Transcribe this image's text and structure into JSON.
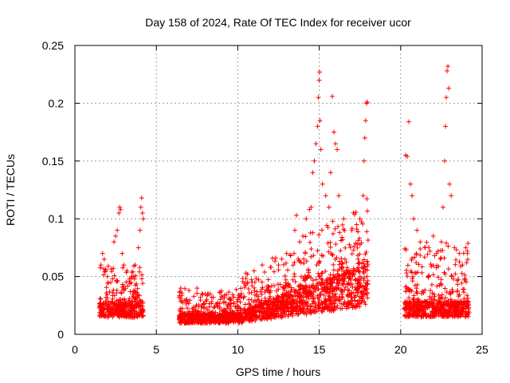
{
  "chart_data": {
    "type": "scatter",
    "title": "Day 158 of 2024, Rate Of TEC Index for receiver ucor",
    "xlabel": "GPS time / hours",
    "ylabel": "ROTI / TECUs",
    "xlim": [
      0,
      25
    ],
    "ylim": [
      0,
      0.25
    ],
    "x_ticks": [
      0,
      5,
      10,
      15,
      20,
      25
    ],
    "y_ticks": [
      0,
      0.05,
      0.1,
      0.15,
      0.2,
      0.25
    ],
    "x_tick_labels": [
      "0",
      "5",
      "10",
      "15",
      "20",
      "25"
    ],
    "y_tick_labels": [
      "0",
      "0.05",
      "0.1",
      "0.15",
      "0.2",
      "0.25"
    ],
    "grid": true,
    "marker": "+",
    "marker_color": "#ff0000",
    "description_bands": [
      {
        "x_start": 1.5,
        "x_end": 4.2,
        "y_min": 0.008,
        "y_median": 0.027,
        "y_max": 0.118
      },
      {
        "x_start": 6.4,
        "x_end": 10.3,
        "y_min": 0.005,
        "y_median": 0.018,
        "y_max": 0.04
      },
      {
        "x_start": 10.3,
        "x_end": 18.0,
        "y_min": 0.005,
        "y_median": 0.035,
        "y_max": 0.227
      },
      {
        "x_start": 20.2,
        "x_end": 24.2,
        "y_min": 0.008,
        "y_median": 0.028,
        "y_max": 0.232
      }
    ],
    "series": [
      {
        "name": "ROTI",
        "points": [
          [
            1.6,
            0.06
          ],
          [
            1.7,
            0.07
          ],
          [
            1.8,
            0.065
          ],
          [
            1.9,
            0.055
          ],
          [
            2.0,
            0.05
          ],
          [
            2.2,
            0.045
          ],
          [
            2.4,
            0.08
          ],
          [
            2.5,
            0.085
          ],
          [
            2.6,
            0.09
          ],
          [
            2.7,
            0.105
          ],
          [
            2.75,
            0.11
          ],
          [
            2.8,
            0.108
          ],
          [
            2.9,
            0.07
          ],
          [
            3.0,
            0.06
          ],
          [
            3.2,
            0.055
          ],
          [
            3.5,
            0.05
          ],
          [
            3.7,
            0.06
          ],
          [
            3.9,
            0.075
          ],
          [
            4.0,
            0.09
          ],
          [
            4.05,
            0.11
          ],
          [
            4.1,
            0.118
          ],
          [
            4.15,
            0.105
          ],
          [
            4.2,
            0.1
          ],
          [
            6.5,
            0.04
          ],
          [
            7.0,
            0.038
          ],
          [
            7.5,
            0.04
          ],
          [
            8.0,
            0.035
          ],
          [
            8.5,
            0.032
          ],
          [
            9.0,
            0.033
          ],
          [
            9.5,
            0.03
          ],
          [
            10.0,
            0.03
          ],
          [
            10.5,
            0.053
          ],
          [
            10.6,
            0.052
          ],
          [
            11.0,
            0.055
          ],
          [
            11.5,
            0.06
          ],
          [
            12.0,
            0.058
          ],
          [
            12.5,
            0.06
          ],
          [
            13.0,
            0.07
          ],
          [
            13.5,
            0.09
          ],
          [
            13.6,
            0.103
          ],
          [
            13.8,
            0.08
          ],
          [
            14.0,
            0.085
          ],
          [
            14.2,
            0.1
          ],
          [
            14.4,
            0.108
          ],
          [
            14.5,
            0.11
          ],
          [
            14.6,
            0.14
          ],
          [
            14.7,
            0.15
          ],
          [
            14.8,
            0.165
          ],
          [
            14.9,
            0.18
          ],
          [
            14.95,
            0.205
          ],
          [
            15.0,
            0.22
          ],
          [
            15.02,
            0.227
          ],
          [
            15.05,
            0.185
          ],
          [
            15.1,
            0.16
          ],
          [
            15.2,
            0.13
          ],
          [
            15.4,
            0.12
          ],
          [
            15.6,
            0.11
          ],
          [
            15.7,
            0.14
          ],
          [
            15.8,
            0.206
          ],
          [
            15.9,
            0.175
          ],
          [
            16.0,
            0.165
          ],
          [
            16.1,
            0.16
          ],
          [
            16.2,
            0.12
          ],
          [
            16.5,
            0.1
          ],
          [
            17.0,
            0.09
          ],
          [
            17.3,
            0.095
          ],
          [
            17.5,
            0.1
          ],
          [
            17.7,
            0.12
          ],
          [
            17.75,
            0.15
          ],
          [
            17.8,
            0.17
          ],
          [
            17.85,
            0.185
          ],
          [
            17.9,
            0.2
          ],
          [
            17.95,
            0.201
          ],
          [
            20.3,
            0.155
          ],
          [
            20.4,
            0.154
          ],
          [
            20.5,
            0.184
          ],
          [
            20.6,
            0.13
          ],
          [
            20.7,
            0.12
          ],
          [
            20.8,
            0.1
          ],
          [
            21.0,
            0.09
          ],
          [
            21.2,
            0.08
          ],
          [
            21.5,
            0.075
          ],
          [
            21.8,
            0.072
          ],
          [
            22.0,
            0.085
          ],
          [
            22.2,
            0.07
          ],
          [
            22.5,
            0.08
          ],
          [
            22.6,
            0.11
          ],
          [
            22.7,
            0.15
          ],
          [
            22.75,
            0.18
          ],
          [
            22.8,
            0.205
          ],
          [
            22.85,
            0.228
          ],
          [
            22.9,
            0.232
          ],
          [
            22.95,
            0.213
          ],
          [
            23.0,
            0.13
          ],
          [
            23.1,
            0.12
          ],
          [
            23.3,
            0.075
          ],
          [
            23.6,
            0.07
          ],
          [
            23.8,
            0.06
          ],
          [
            24.0,
            0.075
          ],
          [
            24.1,
            0.07
          ]
        ]
      }
    ]
  }
}
